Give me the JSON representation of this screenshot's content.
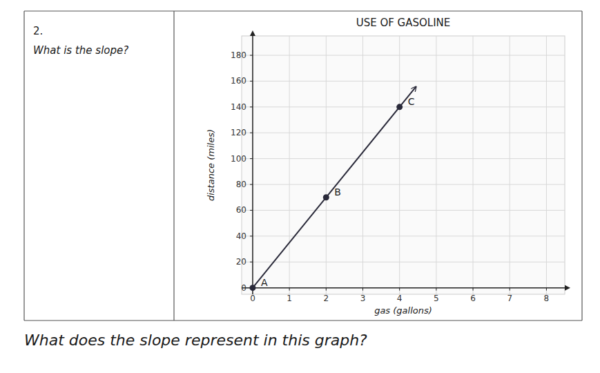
{
  "chart_data": {
    "type": "line",
    "title": "USE OF GASOLINE",
    "x_label": "gas (gallons)",
    "y_label": "distance (miles)",
    "annotations": [
      "2.",
      "What is the slope?",
      "What does the slope represent in this graph?"
    ],
    "xlim": [
      -0.3,
      8.5
    ],
    "ylim": [
      -5,
      195
    ],
    "xticks": [
      0,
      1,
      2,
      3,
      4,
      5,
      6,
      7,
      8
    ],
    "yticks": [
      0,
      20,
      40,
      60,
      80,
      100,
      120,
      140,
      160,
      180
    ],
    "grid": true,
    "series": [
      {
        "type": "line",
        "x": [
          0,
          4.45
        ],
        "values": [
          0,
          155.75
        ],
        "color": "#2a2a3a"
      },
      {
        "type": "scatter",
        "x": [
          0,
          2,
          4
        ],
        "values": [
          0,
          70,
          140
        ],
        "labels": [
          "A",
          "B",
          "C"
        ],
        "color": "#2a2a3a"
      }
    ]
  }
}
